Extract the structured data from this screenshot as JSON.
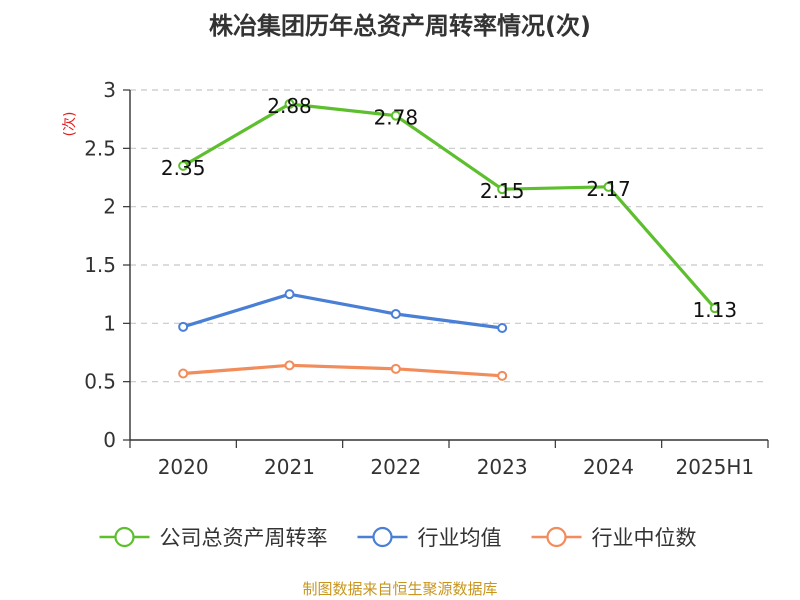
{
  "title": "株冶集团历年总资产周转率情况(次)",
  "source": "制图数据来自恒生聚源数据库",
  "chart_data": {
    "type": "line",
    "title": "株冶集团历年总资产周转率情况(次)",
    "xlabel": "",
    "ylabel": "(次)",
    "ylabel_color": "#e02020",
    "categories": [
      "2020",
      "2021",
      "2022",
      "2023",
      "2024",
      "2025H1"
    ],
    "ylim": [
      0,
      3
    ],
    "yticks": [
      0,
      0.5,
      1,
      1.5,
      2,
      2.5,
      3
    ],
    "ytick_labels": [
      "0",
      "0.5",
      "1",
      "1.5",
      "2",
      "2.5",
      "3"
    ],
    "grid": true,
    "legend_position": "bottom",
    "series": [
      {
        "name": "公司总资产周转率",
        "color": "#5dbf2e",
        "values": [
          2.35,
          2.88,
          2.78,
          2.15,
          2.17,
          1.13
        ],
        "labels": [
          "2.35",
          "2.88",
          "2.78",
          "2.15",
          "2.17",
          "1.13"
        ],
        "show_labels": true
      },
      {
        "name": "行业均值",
        "color": "#4a7fd6",
        "values": [
          0.97,
          1.25,
          1.08,
          0.96,
          null,
          null
        ],
        "show_labels": false
      },
      {
        "name": "行业中位数",
        "color": "#f28c5a",
        "values": [
          0.57,
          0.64,
          0.61,
          0.55,
          null,
          null
        ],
        "show_labels": false
      }
    ]
  }
}
